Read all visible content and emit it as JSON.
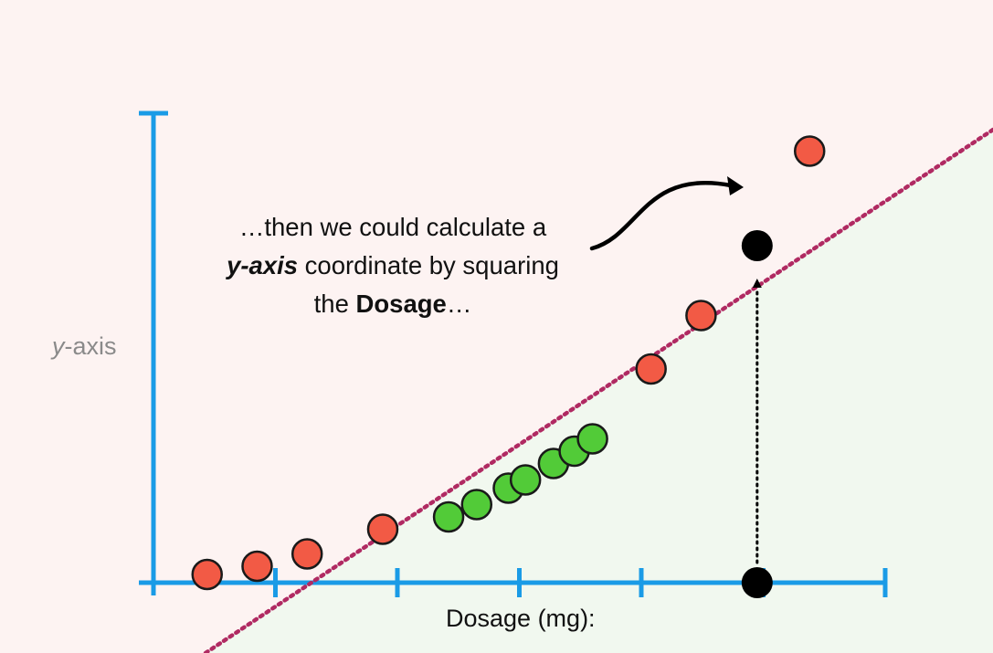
{
  "chart_data": {
    "type": "scatter",
    "xlabel": "Dosage (mg):",
    "ylabel": {
      "italic": "y",
      "rest": "-axis"
    },
    "x_ticks": 6,
    "annotation": {
      "line1": "…then we could calculate a",
      "line2_bold": "y-axis",
      "line2_rest": " coordinate by squaring",
      "line3_pre": "the ",
      "line3_bold": "Dosage",
      "line3_post": "…"
    },
    "series": [
      {
        "color": "#f25a45",
        "points": [
          [
            0.44,
            0.02
          ],
          [
            0.85,
            0.04
          ],
          [
            1.26,
            0.07
          ],
          [
            1.88,
            0.13
          ],
          [
            4.08,
            0.52
          ],
          [
            4.49,
            0.65
          ],
          [
            5.38,
            1.05
          ]
        ]
      },
      {
        "color": "#52cb38",
        "points": [
          [
            2.42,
            0.16
          ],
          [
            2.65,
            0.19
          ],
          [
            2.91,
            0.23
          ],
          [
            3.05,
            0.25
          ],
          [
            3.28,
            0.29
          ],
          [
            3.45,
            0.32
          ],
          [
            3.6,
            0.35
          ]
        ]
      }
    ],
    "highlight_point": {
      "x": 4.95,
      "y_squared": 0.82,
      "color": "#000000"
    },
    "boundary_line": {
      "color": "#b02a62",
      "style": "dotted"
    },
    "background_regions": {
      "upper": "#fdf3f2",
      "lower": "#f1f8ef"
    },
    "axis_color": "#1a9be6"
  }
}
